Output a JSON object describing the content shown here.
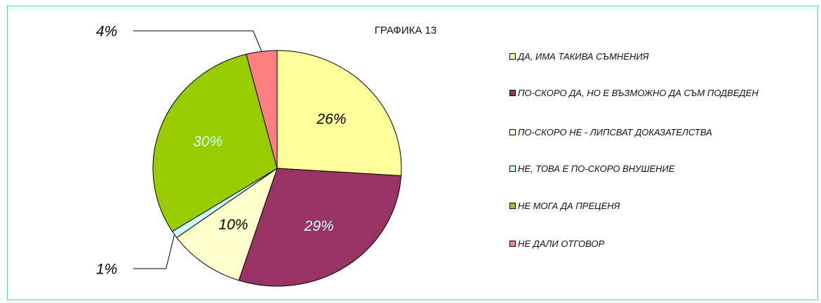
{
  "chart_data": {
    "type": "pie",
    "title": "ГРАФИКА 13",
    "categories": [
      "ДА, ИМА ТАКИВА СЪМНЕНИЯ",
      "ПО-СКОРО ДА, НО Е ВЪЗМОЖНО ДА СЪМ ПОДВЕДЕН",
      "ПО-СКОРО НЕ - ЛИПСВАТ ДОКАЗАТЕЛСТВА",
      "НЕ, ТОВА Е ПО-СКОРО ВНУШЕНИЕ",
      "НЕ МОГА ДА ПРЕЦЕНЯ",
      "НЕ ДАЛИ ОТГОВОР"
    ],
    "values": [
      26,
      29,
      10,
      1,
      30,
      4
    ],
    "value_labels": [
      "26%",
      "29%",
      "10%",
      "1%",
      "30%",
      "4%"
    ],
    "colors": [
      "#FFFF99",
      "#993366",
      "#FFFFCC",
      "#CCFFFF",
      "#99CC00",
      "#FF8080"
    ],
    "label_colors": [
      "#000000",
      "#CCFFFF",
      "#000000",
      "#000000",
      "#CCFFFF",
      "#000000"
    ]
  }
}
